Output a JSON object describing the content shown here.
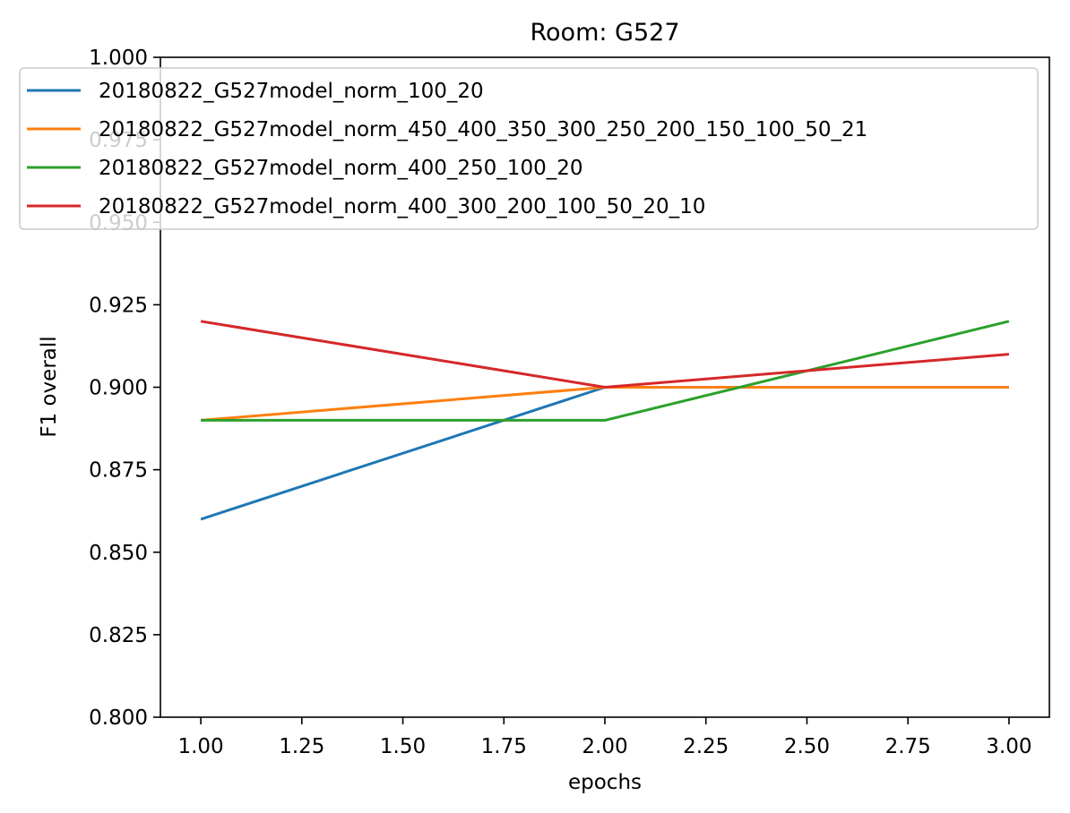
{
  "chart_data": {
    "type": "line",
    "title": "Room: G527",
    "xlabel": "epochs",
    "ylabel": "F1 overall",
    "xlim": [
      0.9,
      3.1
    ],
    "ylim": [
      0.8,
      1.0
    ],
    "xticks": [
      "1.00",
      "1.25",
      "1.50",
      "1.75",
      "2.00",
      "2.25",
      "2.50",
      "2.75",
      "3.00"
    ],
    "yticks": [
      "0.800",
      "0.825",
      "0.850",
      "0.875",
      "0.900",
      "0.925",
      "0.950",
      "0.975",
      "1.000"
    ],
    "x": [
      1,
      2,
      3
    ],
    "grid": false,
    "legend_position": "top-left",
    "series": [
      {
        "name": "20180822_G527model_norm_100_20",
        "color": "#1f77b4",
        "values": [
          0.86,
          0.9,
          0.9
        ]
      },
      {
        "name": "20180822_G527model_norm_450_400_350_300_250_200_150_100_50_21",
        "color": "#ff7f0e",
        "values": [
          0.89,
          0.9,
          0.9
        ]
      },
      {
        "name": "20180822_G527model_norm_400_250_100_20",
        "color": "#2ca02c",
        "values": [
          0.89,
          0.89,
          0.92
        ]
      },
      {
        "name": "20180822_G527model_norm_400_300_200_100_50_20_10",
        "color": "#d62728",
        "values": [
          0.92,
          0.9,
          0.91
        ]
      }
    ]
  }
}
